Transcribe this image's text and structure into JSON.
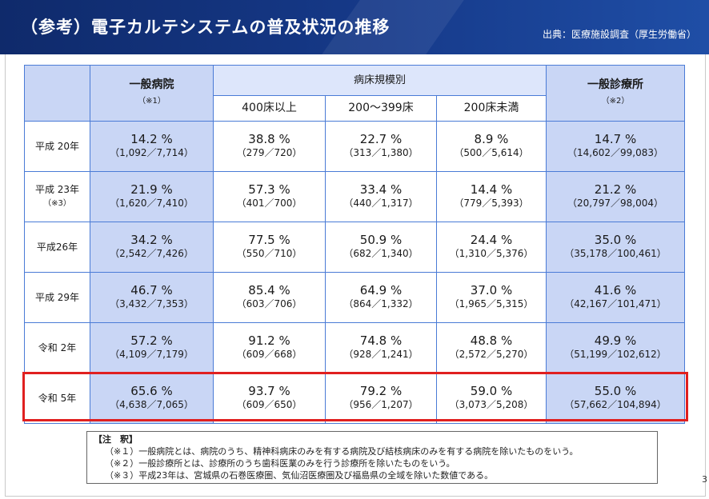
{
  "header": {
    "title": "（参考）電子カルテシステムの普及状況の推移",
    "source": "出典：医療施設調査（厚生労働省）"
  },
  "table": {
    "general_hospital": "一般病院",
    "general_hospital_note": "（※1）",
    "bed_scale_group": "病床規模別",
    "beds_400_plus": "400床以上",
    "beds_200_399": "200～399床",
    "beds_under_200": "200床未満",
    "general_clinic": "一般診療所",
    "general_clinic_note": "（※2）",
    "rows": [
      {
        "label": "平成 20年",
        "note": "",
        "gen": {
          "pct": "14.2 %",
          "frac": "（1,092／7,714）"
        },
        "b400": {
          "pct": "38.8 %",
          "frac": "（279／720）"
        },
        "b200": {
          "pct": "22.7 %",
          "frac": "（313／1,380）"
        },
        "bu200": {
          "pct": "8.9 %",
          "frac": "（500／5,614）"
        },
        "clinic": {
          "pct": "14.7 %",
          "frac": "（14,602／99,083）"
        }
      },
      {
        "label": "平成 23年",
        "note": "（※3）",
        "gen": {
          "pct": "21.9 %",
          "frac": "（1,620／7,410）"
        },
        "b400": {
          "pct": "57.3 %",
          "frac": "（401／700）"
        },
        "b200": {
          "pct": "33.4 %",
          "frac": "（440／1,317）"
        },
        "bu200": {
          "pct": "14.4 %",
          "frac": "（779／5,393）"
        },
        "clinic": {
          "pct": "21.2 %",
          "frac": "（20,797／98,004）"
        }
      },
      {
        "label": "平成26年",
        "note": "",
        "gen": {
          "pct": "34.2 %",
          "frac": "（2,542／7,426）"
        },
        "b400": {
          "pct": "77.5 %",
          "frac": "（550／710）"
        },
        "b200": {
          "pct": "50.9 %",
          "frac": "（682／1,340）"
        },
        "bu200": {
          "pct": "24.4 %",
          "frac": "（1,310／5,376）"
        },
        "clinic": {
          "pct": "35.0 %",
          "frac": "（35,178／100,461）"
        }
      },
      {
        "label": "平成 29年",
        "note": "",
        "gen": {
          "pct": "46.7 %",
          "frac": "（3,432／7,353）"
        },
        "b400": {
          "pct": "85.4 %",
          "frac": "（603／706）"
        },
        "b200": {
          "pct": "64.9 %",
          "frac": "（864／1,332）"
        },
        "bu200": {
          "pct": "37.0 %",
          "frac": "（1,965／5,315）"
        },
        "clinic": {
          "pct": "41.6 %",
          "frac": "（42,167／101,471）"
        }
      },
      {
        "label": "令和 2年",
        "note": "",
        "gen": {
          "pct": "57.2 %",
          "frac": "（4,109／7,179）"
        },
        "b400": {
          "pct": "91.2 %",
          "frac": "（609／668）"
        },
        "b200": {
          "pct": "74.8 %",
          "frac": "（928／1,241）"
        },
        "bu200": {
          "pct": "48.8 %",
          "frac": "（2,572／5,270）"
        },
        "clinic": {
          "pct": "49.9 %",
          "frac": "（51,199／102,612）"
        }
      },
      {
        "label": "令和 5年",
        "note": "",
        "gen": {
          "pct": "65.6 %",
          "frac": "（4,638／7,065）"
        },
        "b400": {
          "pct": "93.7 %",
          "frac": "（609／650）"
        },
        "b200": {
          "pct": "79.2 %",
          "frac": "（956／1,207）"
        },
        "bu200": {
          "pct": "59.0 %",
          "frac": "（3,073／5,208）"
        },
        "clinic": {
          "pct": "55.0 %",
          "frac": "（57,662／104,894）"
        }
      }
    ]
  },
  "notes": {
    "title": "【注　釈】",
    "n1": "（※１）一般病院とは、病院のうち、精神科病床のみを有する病院及び結核病床のみを有する病院を除いたものをいう。",
    "n2": "（※２）一般診療所とは、診療所のうち歯科医業のみを行う診療所を除いたものをいう。",
    "n3": "（※３）平成23年は、宮城県の石巻医療圏、気仙沼医療圏及び福島県の全域を除いた数値である。"
  },
  "page_number": "3",
  "colors": {
    "header": "#163a8a",
    "cell_highlight": "#c9d6f5",
    "grid_line": "#4a7bd6",
    "emphasis_border": "#e02020"
  }
}
